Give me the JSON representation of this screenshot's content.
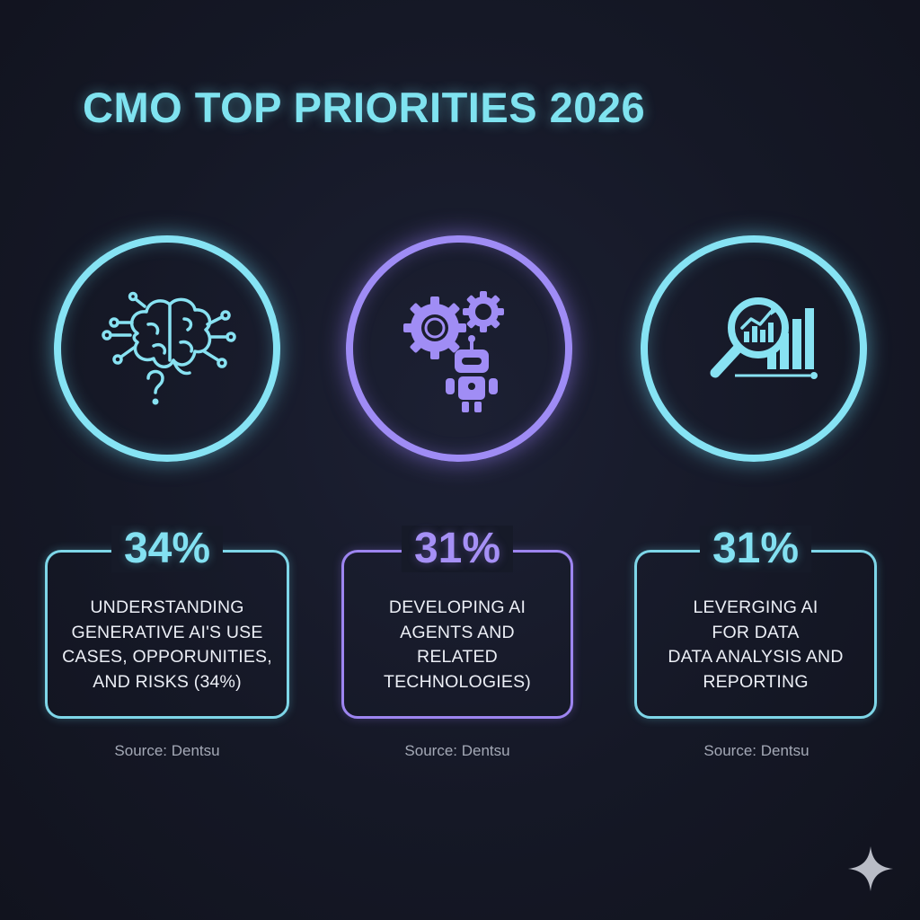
{
  "title": "CMO TOP PRIORITIES 2026",
  "items": [
    {
      "percent": "34%",
      "lines": [
        "UNDERSTANDING",
        "GENERATIVE AI'S USE",
        "CASES, OPPORUNITIES,",
        "AND RISKS (34%)"
      ],
      "source": "Source: Dentsu",
      "icon": "brain-question-icon",
      "accent": "#86e3f4"
    },
    {
      "percent": "31%",
      "lines": [
        "DEVELOPING AI",
        "AGENTS AND",
        "RELATED",
        "TECHNOLOGIES)"
      ],
      "source": "Source: Dentsu",
      "icon": "gears-robot-icon",
      "accent": "#9f8cf5"
    },
    {
      "percent": "31%",
      "lines": [
        "LEVERGING AI",
        "FOR DATA",
        "DATA ANALYSIS AND",
        "REPORTING"
      ],
      "source": "Source: Dentsu",
      "icon": "magnifier-chart-icon",
      "accent": "#86e3f4"
    }
  ],
  "colors": {
    "background": "#151826",
    "cyan_accent": "#86e3f4",
    "purple_accent": "#9f8cf5",
    "body_text": "#eceff6",
    "source_text": "#a4a9b6"
  },
  "decorations": {
    "corner_icon": "sparkle-icon"
  }
}
